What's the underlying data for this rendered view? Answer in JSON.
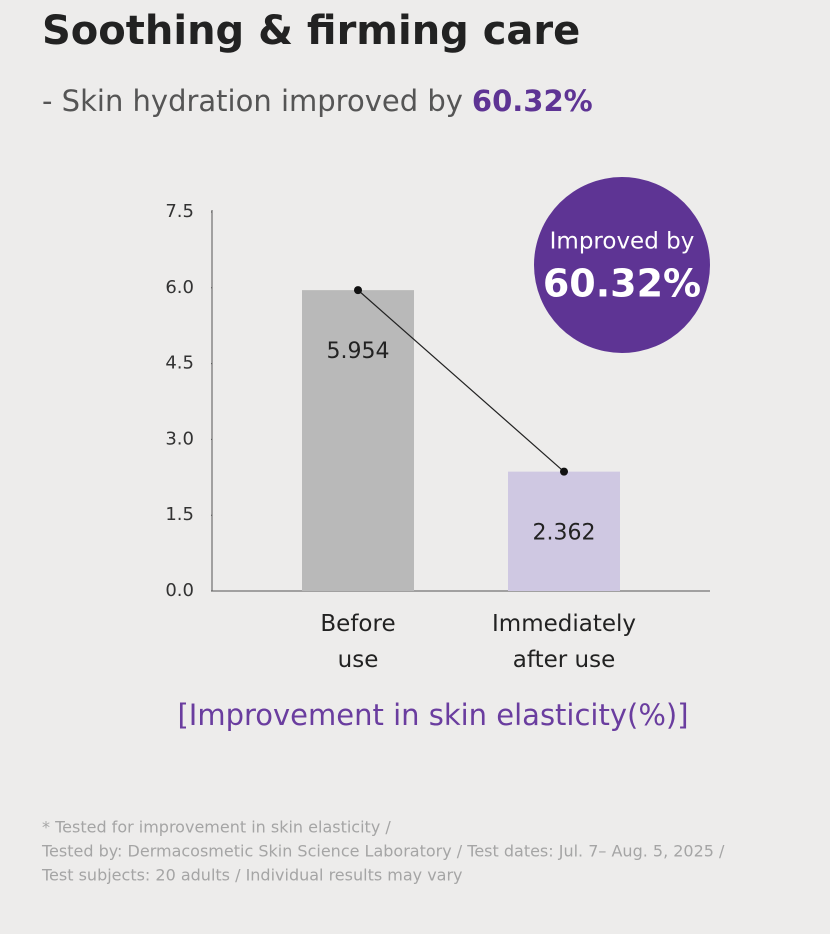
{
  "chart_data": {
    "type": "bar",
    "title": "Soothing & firming care",
    "subtitle": {
      "text": "- Skin hydration improved by",
      "highlight": "60.32%"
    },
    "badge": {
      "line1": "Improved by",
      "line2": "60.32%"
    },
    "categories": [
      "Before\nuse",
      "Immediately\nafter use"
    ],
    "values": [
      5.954,
      2.362
    ],
    "colors": [
      "#b9b9b9",
      "#cfc8e2"
    ],
    "ylim": [
      0,
      7.5
    ],
    "yticks": [
      {
        "value": 0,
        "label": "0.0"
      },
      1.5,
      {
        "value": 3,
        "label": "3.0"
      },
      4.5,
      {
        "value": 6,
        "label": "6.0"
      },
      7.5
    ],
    "x_label": "[Improvement in skin elasticity(%)]",
    "footnote": [
      "* Tested for improvement in skin elasticity /",
      "Tested by: Dermacosmetic Skin Science Laboratory / Test dates: Jul. 7– Aug. 5, 2025 /",
      "Test subjects: 20 adults / Individual results may vary"
    ]
  }
}
